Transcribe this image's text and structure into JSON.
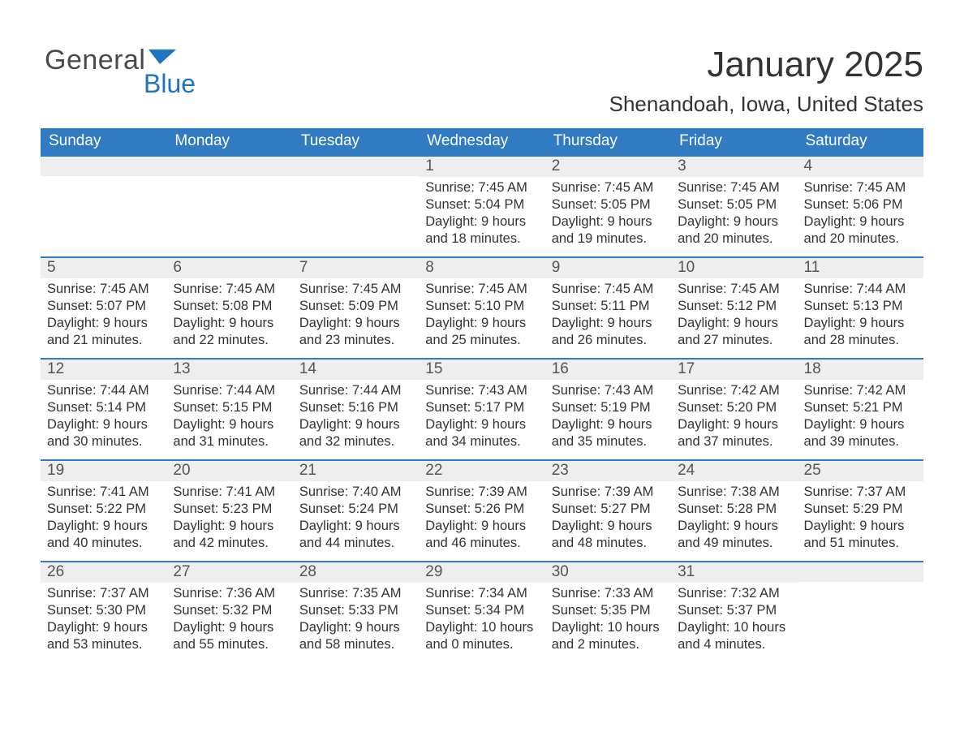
{
  "brand": {
    "word1": "General",
    "word2": "Blue",
    "color2": "#1e74c1",
    "tri_color": "#1e74c1"
  },
  "header": {
    "title": "January 2025",
    "location": "Shenandoah, Iowa, United States"
  },
  "style": {
    "header_bg": "#317bc2",
    "header_fg": "#ffffff",
    "row_border": "#317bc2",
    "daynum_bg": "#eeeeee",
    "daynum_fg": "#555555",
    "body_fg": "#333333",
    "page_bg": "#ffffff",
    "title_fontsize": 44,
    "loc_fontsize": 26,
    "th_fontsize": 19,
    "daynum_fontsize": 19,
    "body_fontsize": 16.5
  },
  "week_headers": [
    "Sunday",
    "Monday",
    "Tuesday",
    "Wednesday",
    "Thursday",
    "Friday",
    "Saturday"
  ],
  "weeks": [
    [
      {
        "n": "",
        "sunrise": "",
        "sunset": "",
        "daylight": ""
      },
      {
        "n": "",
        "sunrise": "",
        "sunset": "",
        "daylight": ""
      },
      {
        "n": "",
        "sunrise": "",
        "sunset": "",
        "daylight": ""
      },
      {
        "n": "1",
        "sunrise": "Sunrise: 7:45 AM",
        "sunset": "Sunset: 5:04 PM",
        "daylight": "Daylight: 9 hours and 18 minutes."
      },
      {
        "n": "2",
        "sunrise": "Sunrise: 7:45 AM",
        "sunset": "Sunset: 5:05 PM",
        "daylight": "Daylight: 9 hours and 19 minutes."
      },
      {
        "n": "3",
        "sunrise": "Sunrise: 7:45 AM",
        "sunset": "Sunset: 5:05 PM",
        "daylight": "Daylight: 9 hours and 20 minutes."
      },
      {
        "n": "4",
        "sunrise": "Sunrise: 7:45 AM",
        "sunset": "Sunset: 5:06 PM",
        "daylight": "Daylight: 9 hours and 20 minutes."
      }
    ],
    [
      {
        "n": "5",
        "sunrise": "Sunrise: 7:45 AM",
        "sunset": "Sunset: 5:07 PM",
        "daylight": "Daylight: 9 hours and 21 minutes."
      },
      {
        "n": "6",
        "sunrise": "Sunrise: 7:45 AM",
        "sunset": "Sunset: 5:08 PM",
        "daylight": "Daylight: 9 hours and 22 minutes."
      },
      {
        "n": "7",
        "sunrise": "Sunrise: 7:45 AM",
        "sunset": "Sunset: 5:09 PM",
        "daylight": "Daylight: 9 hours and 23 minutes."
      },
      {
        "n": "8",
        "sunrise": "Sunrise: 7:45 AM",
        "sunset": "Sunset: 5:10 PM",
        "daylight": "Daylight: 9 hours and 25 minutes."
      },
      {
        "n": "9",
        "sunrise": "Sunrise: 7:45 AM",
        "sunset": "Sunset: 5:11 PM",
        "daylight": "Daylight: 9 hours and 26 minutes."
      },
      {
        "n": "10",
        "sunrise": "Sunrise: 7:45 AM",
        "sunset": "Sunset: 5:12 PM",
        "daylight": "Daylight: 9 hours and 27 minutes."
      },
      {
        "n": "11",
        "sunrise": "Sunrise: 7:44 AM",
        "sunset": "Sunset: 5:13 PM",
        "daylight": "Daylight: 9 hours and 28 minutes."
      }
    ],
    [
      {
        "n": "12",
        "sunrise": "Sunrise: 7:44 AM",
        "sunset": "Sunset: 5:14 PM",
        "daylight": "Daylight: 9 hours and 30 minutes."
      },
      {
        "n": "13",
        "sunrise": "Sunrise: 7:44 AM",
        "sunset": "Sunset: 5:15 PM",
        "daylight": "Daylight: 9 hours and 31 minutes."
      },
      {
        "n": "14",
        "sunrise": "Sunrise: 7:44 AM",
        "sunset": "Sunset: 5:16 PM",
        "daylight": "Daylight: 9 hours and 32 minutes."
      },
      {
        "n": "15",
        "sunrise": "Sunrise: 7:43 AM",
        "sunset": "Sunset: 5:17 PM",
        "daylight": "Daylight: 9 hours and 34 minutes."
      },
      {
        "n": "16",
        "sunrise": "Sunrise: 7:43 AM",
        "sunset": "Sunset: 5:19 PM",
        "daylight": "Daylight: 9 hours and 35 minutes."
      },
      {
        "n": "17",
        "sunrise": "Sunrise: 7:42 AM",
        "sunset": "Sunset: 5:20 PM",
        "daylight": "Daylight: 9 hours and 37 minutes."
      },
      {
        "n": "18",
        "sunrise": "Sunrise: 7:42 AM",
        "sunset": "Sunset: 5:21 PM",
        "daylight": "Daylight: 9 hours and 39 minutes."
      }
    ],
    [
      {
        "n": "19",
        "sunrise": "Sunrise: 7:41 AM",
        "sunset": "Sunset: 5:22 PM",
        "daylight": "Daylight: 9 hours and 40 minutes."
      },
      {
        "n": "20",
        "sunrise": "Sunrise: 7:41 AM",
        "sunset": "Sunset: 5:23 PM",
        "daylight": "Daylight: 9 hours and 42 minutes."
      },
      {
        "n": "21",
        "sunrise": "Sunrise: 7:40 AM",
        "sunset": "Sunset: 5:24 PM",
        "daylight": "Daylight: 9 hours and 44 minutes."
      },
      {
        "n": "22",
        "sunrise": "Sunrise: 7:39 AM",
        "sunset": "Sunset: 5:26 PM",
        "daylight": "Daylight: 9 hours and 46 minutes."
      },
      {
        "n": "23",
        "sunrise": "Sunrise: 7:39 AM",
        "sunset": "Sunset: 5:27 PM",
        "daylight": "Daylight: 9 hours and 48 minutes."
      },
      {
        "n": "24",
        "sunrise": "Sunrise: 7:38 AM",
        "sunset": "Sunset: 5:28 PM",
        "daylight": "Daylight: 9 hours and 49 minutes."
      },
      {
        "n": "25",
        "sunrise": "Sunrise: 7:37 AM",
        "sunset": "Sunset: 5:29 PM",
        "daylight": "Daylight: 9 hours and 51 minutes."
      }
    ],
    [
      {
        "n": "26",
        "sunrise": "Sunrise: 7:37 AM",
        "sunset": "Sunset: 5:30 PM",
        "daylight": "Daylight: 9 hours and 53 minutes."
      },
      {
        "n": "27",
        "sunrise": "Sunrise: 7:36 AM",
        "sunset": "Sunset: 5:32 PM",
        "daylight": "Daylight: 9 hours and 55 minutes."
      },
      {
        "n": "28",
        "sunrise": "Sunrise: 7:35 AM",
        "sunset": "Sunset: 5:33 PM",
        "daylight": "Daylight: 9 hours and 58 minutes."
      },
      {
        "n": "29",
        "sunrise": "Sunrise: 7:34 AM",
        "sunset": "Sunset: 5:34 PM",
        "daylight": "Daylight: 10 hours and 0 minutes."
      },
      {
        "n": "30",
        "sunrise": "Sunrise: 7:33 AM",
        "sunset": "Sunset: 5:35 PM",
        "daylight": "Daylight: 10 hours and 2 minutes."
      },
      {
        "n": "31",
        "sunrise": "Sunrise: 7:32 AM",
        "sunset": "Sunset: 5:37 PM",
        "daylight": "Daylight: 10 hours and 4 minutes."
      },
      {
        "n": "",
        "sunrise": "",
        "sunset": "",
        "daylight": ""
      }
    ]
  ]
}
